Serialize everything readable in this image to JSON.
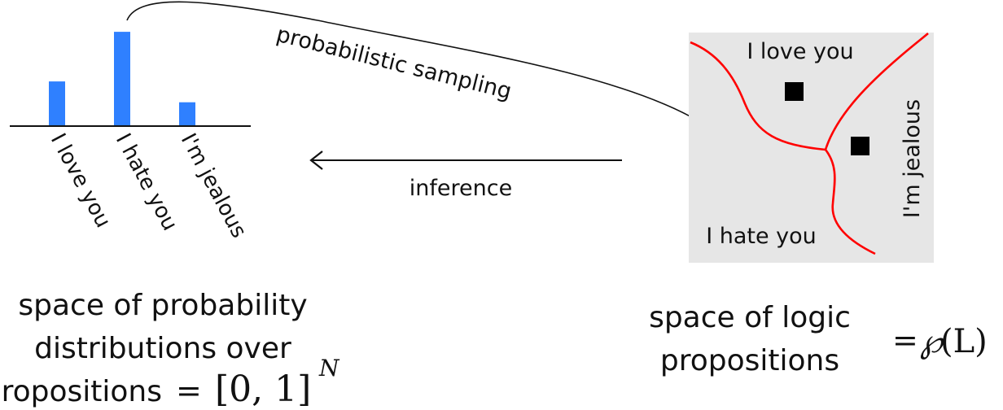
{
  "chart_data": {
    "type": "bar",
    "categories": [
      "I love you",
      "I hate you",
      "I'm jealous"
    ],
    "values": [
      0.45,
      0.95,
      0.24
    ],
    "title": "",
    "xlabel": "",
    "ylabel": "",
    "ylim": [
      0,
      1
    ],
    "bar_color": "#2f80ff"
  },
  "arrows": {
    "sampling_label": "probabilistic sampling",
    "inference_label": "inference"
  },
  "logic_space": {
    "regions": [
      "I love you",
      "I hate you",
      "I'm jealous"
    ],
    "boundary_color": "#ff0000",
    "background_color": "#e6e6e6"
  },
  "captions": {
    "left_line1": "space of probability",
    "left_line2": "distributions over",
    "left_line3": "propositions",
    "left_math_eq": "=",
    "left_math_set": "[0, 1]",
    "left_math_sup": "N",
    "right_line1": "space of logic",
    "right_line2": "propositions",
    "right_math_eq": "=",
    "right_math_p": "℘",
    "right_math_arg": "(L)"
  }
}
